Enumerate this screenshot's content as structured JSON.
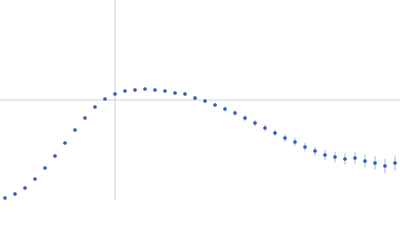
{
  "chart_data": {
    "type": "scatter",
    "xlim": [
      0,
      400
    ],
    "ylim": [
      0,
      200
    ],
    "xticks": [
      115
    ],
    "yticks": [
      100
    ],
    "grid": true,
    "series": [
      {
        "color": "#2f5fb3",
        "x": [
          5,
          15,
          25,
          35,
          45,
          55,
          65,
          75,
          85,
          95,
          105,
          115,
          125,
          135,
          145,
          155,
          165,
          175,
          185,
          195,
          205,
          215,
          225,
          235,
          245,
          255,
          265,
          275,
          285,
          295,
          305,
          315,
          325,
          335,
          345,
          355,
          365,
          375,
          385,
          395
        ],
        "values": [
          2,
          6,
          12,
          21,
          32,
          44,
          57,
          70,
          82,
          93,
          101,
          106,
          109,
          110,
          111,
          110,
          109,
          107,
          106,
          102,
          99,
          95,
          91,
          87,
          82,
          77,
          72,
          67,
          62,
          58,
          53,
          49,
          45,
          43,
          41,
          42,
          39,
          37,
          34,
          37
        ],
        "errors": [
          0.5,
          0.5,
          0.5,
          0.6,
          0.6,
          0.7,
          0.7,
          0.8,
          0.8,
          0.9,
          1,
          1,
          1.1,
          1.2,
          1.3,
          1.4,
          1.5,
          1.6,
          1.8,
          2,
          2.1,
          2.3,
          2.5,
          2.7,
          2.9,
          3.1,
          3.3,
          3.5,
          3.8,
          4,
          4.3,
          4.6,
          5,
          5.3,
          5.7,
          6,
          6.4,
          6.8,
          7.2,
          7.6
        ]
      }
    ]
  }
}
